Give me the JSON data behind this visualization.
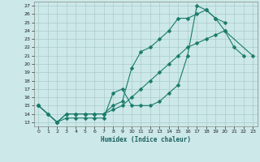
{
  "xlabel": "Humidex (Indice chaleur)",
  "bg_color": "#cce8e8",
  "grid_color": "#aacccc",
  "line_color": "#1a7a6a",
  "xlim": [
    -0.5,
    23.5
  ],
  "ylim": [
    12.5,
    27.5
  ],
  "xticks": [
    0,
    1,
    2,
    3,
    4,
    5,
    6,
    7,
    8,
    9,
    10,
    11,
    12,
    13,
    14,
    15,
    16,
    17,
    18,
    19,
    20,
    21,
    22,
    23
  ],
  "yticks": [
    13,
    14,
    15,
    16,
    17,
    18,
    19,
    20,
    21,
    22,
    23,
    24,
    25,
    26,
    27
  ],
  "line1_x": [
    0,
    1,
    2,
    3,
    4,
    5,
    6,
    7,
    8,
    9,
    10,
    11,
    12,
    13,
    14,
    15,
    16,
    17,
    18,
    19,
    20,
    21,
    22
  ],
  "line1_y": [
    15,
    14,
    13,
    13.5,
    13.5,
    13.5,
    13.5,
    13.5,
    16.5,
    17,
    15,
    15,
    15,
    15.5,
    16.5,
    17.5,
    21,
    27,
    26.5,
    25.5,
    24,
    22,
    21
  ],
  "line2_x": [
    0,
    1,
    2,
    3,
    4,
    5,
    6,
    7,
    8,
    9,
    10,
    11,
    12,
    13,
    14,
    15,
    16,
    17,
    18,
    19,
    20
  ],
  "line2_y": [
    15,
    14,
    13,
    14,
    14,
    14,
    14,
    14,
    15,
    15.5,
    19.5,
    21.5,
    22,
    23,
    24,
    25.5,
    25.5,
    26,
    26.5,
    25.5,
    25
  ],
  "line3_x": [
    0,
    2,
    3,
    4,
    5,
    6,
    7,
    8,
    9,
    10,
    11,
    12,
    13,
    14,
    15,
    16,
    17,
    18,
    19,
    20,
    23
  ],
  "line3_y": [
    15,
    13,
    14,
    14,
    14,
    14,
    14,
    14.5,
    15,
    16,
    17,
    18,
    19,
    20,
    21,
    22,
    22.5,
    23,
    23.5,
    24,
    21
  ]
}
